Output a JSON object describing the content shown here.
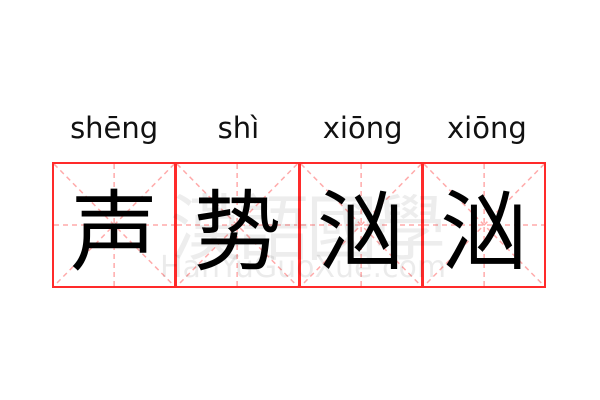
{
  "words": [
    {
      "pinyin": "shēng",
      "char": "声"
    },
    {
      "pinyin": "shì",
      "char": "势"
    },
    {
      "pinyin": "xiōng",
      "char": "汹"
    },
    {
      "pinyin": "xiōng",
      "char": "汹"
    }
  ],
  "watermark": {
    "logo": "漢語國學",
    "site": "HanYuGuoXue.com"
  },
  "colors": {
    "grid_border": "#ff2a2a",
    "guide_lines": "#ffaaaa",
    "text": "#000000"
  }
}
